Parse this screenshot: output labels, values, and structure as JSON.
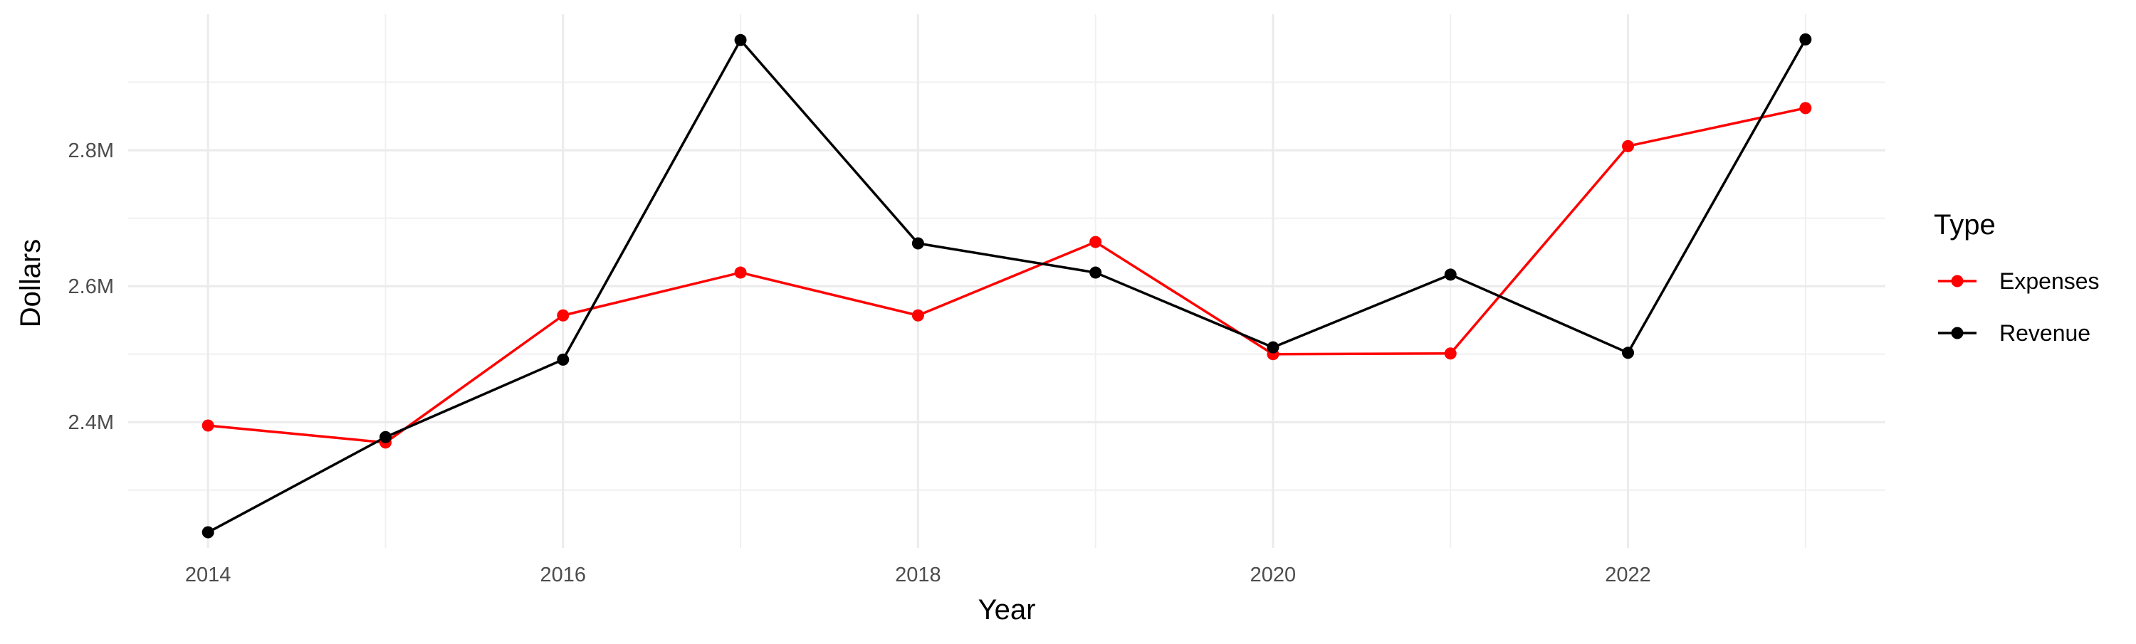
{
  "chart_data": {
    "type": "line",
    "title": "",
    "xlabel": "Year",
    "ylabel": "Dollars",
    "x": [
      2014,
      2015,
      2016,
      2017,
      2018,
      2019,
      2020,
      2021,
      2022,
      2023
    ],
    "x_ticks": [
      2014,
      2016,
      2018,
      2020,
      2022
    ],
    "x_tick_labels": [
      "2014",
      "2016",
      "2018",
      "2020",
      "2022"
    ],
    "xlim": [
      2013.55,
      2023.45
    ],
    "y_ticks": [
      2400000,
      2600000,
      2800000
    ],
    "y_tick_labels": [
      "2.4M",
      "2.6M",
      "2.8M"
    ],
    "ylim": [
      2215000,
      3000000
    ],
    "grid": true,
    "legend": {
      "title": "Type",
      "position": "right",
      "entries": [
        "Expenses",
        "Revenue"
      ]
    },
    "series": [
      {
        "name": "Expenses",
        "color": "#ff0000",
        "values": [
          2395000,
          2370000,
          2557000,
          2620000,
          2557000,
          2665000,
          2500000,
          2501000,
          2806000,
          2862000
        ]
      },
      {
        "name": "Revenue",
        "color": "#000000",
        "values": [
          2238000,
          2378000,
          2492000,
          2962000,
          2663000,
          2620000,
          2510000,
          2617000,
          2502000,
          2963000
        ]
      }
    ]
  }
}
